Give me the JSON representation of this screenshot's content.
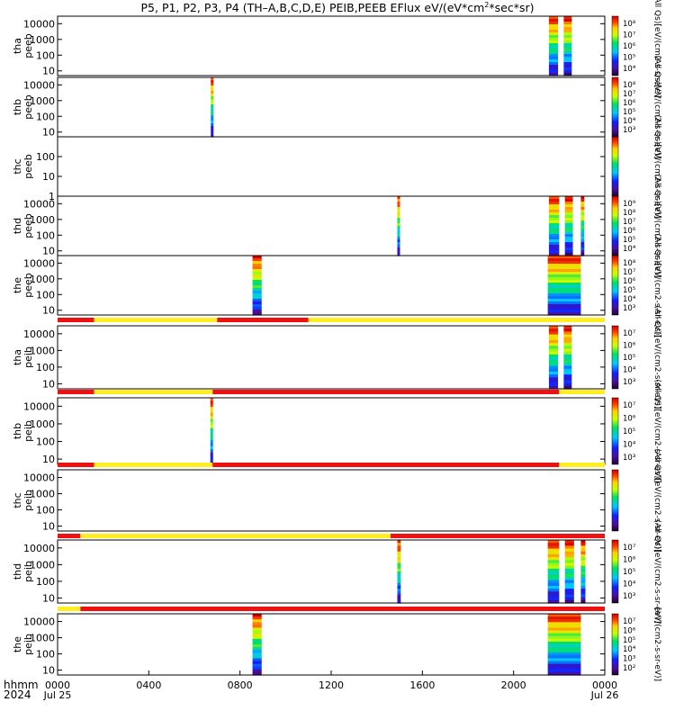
{
  "title": "P5, P1, P2, P3, P4 (TH-A,B,C,D,E) PEIB,PEEB EFlux eV/(eV*cm2*sec*sr)",
  "title_parts": {
    "before": "P5, P1, P2, P3, P4 (TH–A,B,C,D,E) PEIB,PEEB EFlux eV/(eV*cm",
    "sup": "2",
    "after": "*sec*sr)"
  },
  "x_axis": {
    "label_line1": "hhmm",
    "label_line2": "2024",
    "ticks": [
      {
        "hours": 0,
        "label": "0000",
        "sub": "Jul 25"
      },
      {
        "hours": 4,
        "label": "0400",
        "sub": ""
      },
      {
        "hours": 8,
        "label": "0800",
        "sub": ""
      },
      {
        "hours": 12,
        "label": "1200",
        "sub": ""
      },
      {
        "hours": 16,
        "label": "1600",
        "sub": ""
      },
      {
        "hours": 20,
        "label": "2000",
        "sub": ""
      },
      {
        "hours": 24,
        "label": "0000",
        "sub": "Jul 26"
      }
    ],
    "range_hours": [
      0,
      24
    ]
  },
  "colors": {
    "mode_red": "#ee1111",
    "mode_yellow": "#ffee22"
  },
  "chart_data": [
    {
      "type": "heatmap",
      "probe": "tha",
      "instrument": "peeb",
      "label1": "tha",
      "label2": "peeb",
      "y_ticks": [
        "10000",
        "1000",
        "100",
        "10"
      ],
      "y_range_eV": [
        5,
        30000
      ],
      "y_scale": "log",
      "data_intervals_hours": [
        [
          21.55,
          21.95
        ],
        [
          22.2,
          22.55
        ]
      ],
      "colorbar": {
        "labels": [
          "10⁸",
          "10⁷",
          "10⁶",
          "10⁵",
          "10⁴"
        ],
        "title": "(All Qs)[eV/(cm2-s-sr-eV)]"
      }
    },
    {
      "type": "heatmap",
      "probe": "thb",
      "instrument": "peeb",
      "label1": "thb",
      "label2": "peeb",
      "y_ticks": [
        "10000",
        "1000",
        "100",
        "10"
      ],
      "y_range_eV": [
        5,
        30000
      ],
      "y_scale": "log",
      "data_intervals_hours": [
        [
          6.72,
          6.8
        ]
      ],
      "colorbar": {
        "labels": [
          "10⁸",
          "10⁷",
          "10⁶",
          "10⁵",
          "10⁴",
          "10³"
        ],
        "title": "(All Qs)[eV/(cm2-s-sr-eV)]"
      }
    },
    {
      "type": "heatmap",
      "probe": "thc",
      "instrument": "peeb",
      "label1": "thc",
      "label2": "peeb",
      "y_ticks": [
        "100",
        "10",
        "1"
      ],
      "y_range_eV": [
        1,
        1000
      ],
      "y_scale": "log",
      "data_intervals_hours": [],
      "colorbar": {
        "labels": [],
        "title": "(All Qs)[eV/(cm2-s-sr-eV)]"
      }
    },
    {
      "type": "heatmap",
      "probe": "thd",
      "instrument": "peeb",
      "label1": "thd",
      "label2": "peeb",
      "y_ticks": [
        "10000",
        "1000",
        "100",
        "10"
      ],
      "y_range_eV": [
        5,
        30000
      ],
      "y_scale": "log",
      "data_intervals_hours": [
        [
          14.9,
          15.0
        ],
        [
          21.55,
          22.0
        ],
        [
          22.25,
          22.6
        ],
        [
          22.95,
          23.1
        ]
      ],
      "colorbar": {
        "labels": [
          "10⁹",
          "10⁸",
          "10⁷",
          "10⁶",
          "10⁵",
          "10⁴"
        ],
        "title": "(All Qs)[eV/(cm2-s-sr-eV)]"
      }
    },
    {
      "type": "heatmap",
      "probe": "the",
      "instrument": "peeb",
      "label1": "the",
      "label2": "peeb",
      "y_ticks": [
        "10000",
        "1000",
        "100",
        "10"
      ],
      "y_range_eV": [
        5,
        30000
      ],
      "y_scale": "log",
      "data_intervals_hours": [
        [
          8.55,
          8.95
        ],
        [
          21.5,
          22.95
        ]
      ],
      "colorbar": {
        "labels": [
          "10⁸",
          "10⁷",
          "10⁶",
          "10⁵",
          "10⁴",
          "10³"
        ],
        "title": "(All Qs)[eV/(cm2-s-sr-eV)]"
      }
    },
    {
      "type": "heatmap",
      "probe": "tha",
      "instrument": "peib",
      "label1": "tha",
      "label2": "peib",
      "y_ticks": [
        "10000",
        "1000",
        "100",
        "10"
      ],
      "y_range_eV": [
        5,
        30000
      ],
      "y_scale": "log",
      "mode_bar": [
        [
          "red",
          0,
          1.6
        ],
        [
          "yellow",
          1.6,
          7.0
        ],
        [
          "red",
          7.0,
          11.0
        ],
        [
          "yellow",
          11.0,
          24
        ]
      ],
      "data_intervals_hours": [
        [
          21.55,
          21.95
        ],
        [
          22.2,
          22.55
        ]
      ],
      "colorbar": {
        "labels": [
          "10⁷",
          "10⁶",
          "10⁵",
          "10⁴",
          "10³"
        ],
        "title": "(All Qs)[eV/(cm2-s-sr-eV)]"
      }
    },
    {
      "type": "heatmap",
      "probe": "thb",
      "instrument": "peib",
      "label1": "thb",
      "label2": "peib",
      "y_ticks": [
        "10000",
        "1000",
        "100",
        "10"
      ],
      "y_range_eV": [
        5,
        30000
      ],
      "y_scale": "log",
      "mode_bar": [
        [
          "red",
          0,
          1.6
        ],
        [
          "yellow",
          1.6,
          6.8
        ],
        [
          "red",
          6.8,
          22.0
        ],
        [
          "yellow",
          22.0,
          24
        ]
      ],
      "data_intervals_hours": [
        [
          6.7,
          6.8
        ]
      ],
      "colorbar": {
        "labels": [
          "10⁷",
          "10⁶",
          "10⁵",
          "10⁴",
          "10³"
        ],
        "title": "(All Qs)[eV/(cm2-s-sr-eV)]"
      }
    },
    {
      "type": "heatmap",
      "probe": "thc",
      "instrument": "peib",
      "label1": "thc",
      "label2": "peib",
      "y_ticks": [
        "10000",
        "1000",
        "100",
        "10"
      ],
      "y_range_eV": [
        5,
        30000
      ],
      "y_scale": "log",
      "mode_bar": [
        [
          "red",
          0,
          1.6
        ],
        [
          "yellow",
          1.6,
          6.8
        ],
        [
          "red",
          6.8,
          22.0
        ],
        [
          "yellow",
          22.0,
          24
        ]
      ],
      "data_intervals_hours": [],
      "colorbar": {
        "labels": [],
        "title": "(All Qs)[eV/(cm2-s-sr-eV)]"
      }
    },
    {
      "type": "heatmap",
      "probe": "thd",
      "instrument": "peib",
      "label1": "thd",
      "label2": "peib",
      "y_ticks": [
        "10000",
        "1000",
        "100",
        "10"
      ],
      "y_range_eV": [
        5,
        30000
      ],
      "y_scale": "log",
      "mode_bar": [
        [
          "red",
          0,
          1.0
        ],
        [
          "yellow",
          1.0,
          14.6
        ],
        [
          "red",
          14.6,
          24
        ]
      ],
      "data_intervals_hours": [
        [
          14.9,
          15.05
        ],
        [
          21.5,
          22.0
        ],
        [
          22.25,
          22.65
        ],
        [
          22.95,
          23.15
        ]
      ],
      "colorbar": {
        "labels": [
          "10⁷",
          "10⁶",
          "10⁵",
          "10⁴",
          "10³"
        ],
        "title": "(All Qs)[eV/(cm2-s-sr-eV)]"
      }
    },
    {
      "type": "heatmap",
      "probe": "the",
      "instrument": "peib",
      "label1": "the",
      "label2": "peib",
      "y_ticks": [
        "10000",
        "1000",
        "100",
        "10"
      ],
      "y_range_eV": [
        5,
        30000
      ],
      "y_scale": "log",
      "mode_bar": [
        [
          "yellow",
          0,
          1.0
        ],
        [
          "red",
          1.0,
          24
        ]
      ],
      "data_intervals_hours": [
        [
          8.55,
          8.95
        ],
        [
          21.5,
          22.95
        ]
      ],
      "colorbar": {
        "labels": [
          "10⁷",
          "10⁶",
          "10⁵",
          "10⁴",
          "10³",
          "10²"
        ],
        "title": "[eV/(cm2-s-sr-eV)]"
      }
    }
  ]
}
